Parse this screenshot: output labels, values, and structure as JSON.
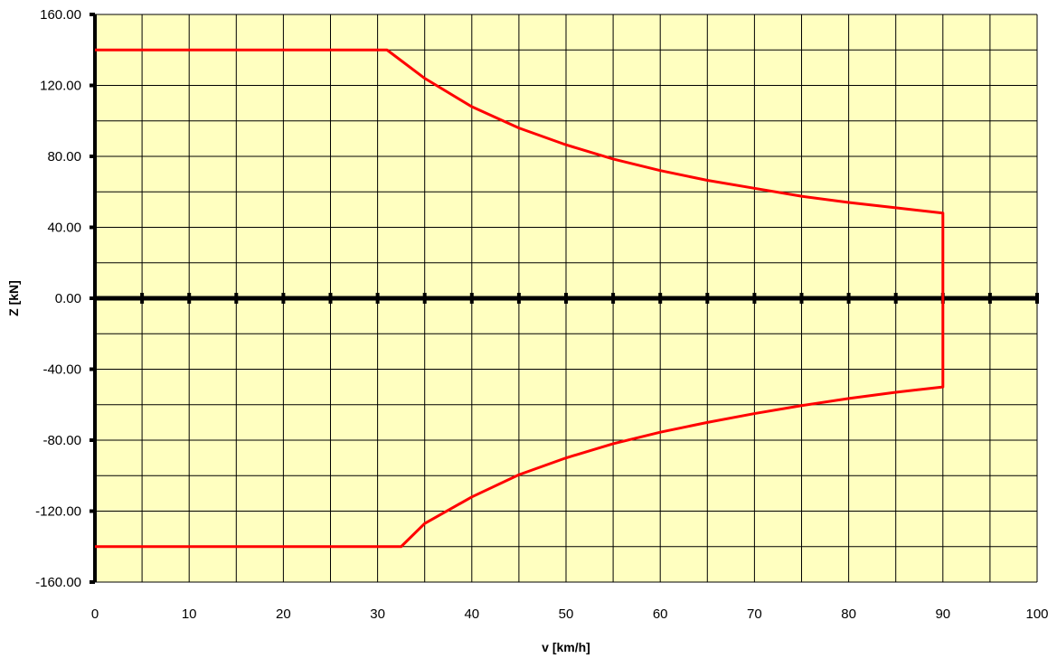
{
  "chart_data": {
    "type": "line",
    "title": "",
    "xlabel": "v [km/h]",
    "ylabel": "Z [kN]",
    "xlim": [
      0,
      100
    ],
    "ylim": [
      -160,
      160
    ],
    "x_ticks": [
      0,
      10,
      20,
      30,
      40,
      50,
      60,
      70,
      80,
      90,
      100
    ],
    "x_tick_labels": [
      "0",
      "10",
      "20",
      "30",
      "40",
      "50",
      "60",
      "70",
      "80",
      "90",
      "100"
    ],
    "y_ticks": [
      -160,
      -120,
      -80,
      -40,
      0,
      40,
      80,
      120,
      160
    ],
    "y_tick_labels": [
      "-160.00",
      "-120.00",
      "-80.00",
      "-40.00",
      "0.00",
      "40.00",
      "80.00",
      "120.00",
      "160.00"
    ],
    "x_grid_step": 5,
    "y_grid_step": 20,
    "grid": true,
    "legend": "none",
    "plot_background": "#ffffc0",
    "grid_color": "#000000",
    "series": [
      {
        "color": "#ff0000",
        "points": [
          [
            0,
            140
          ],
          [
            31,
            140
          ],
          [
            35,
            124
          ],
          [
            40,
            108
          ],
          [
            45,
            96
          ],
          [
            50,
            86.5
          ],
          [
            55,
            78.5
          ],
          [
            60,
            72
          ],
          [
            65,
            66.5
          ],
          [
            70,
            62
          ],
          [
            75,
            57.5
          ],
          [
            80,
            54
          ],
          [
            85,
            51
          ],
          [
            90,
            48
          ],
          [
            90,
            -50
          ],
          [
            85,
            -53
          ],
          [
            80,
            -56.5
          ],
          [
            75,
            -60.5
          ],
          [
            70,
            -65
          ],
          [
            65,
            -70
          ],
          [
            60,
            -75.5
          ],
          [
            55,
            -82
          ],
          [
            50,
            -90
          ],
          [
            45,
            -99.5
          ],
          [
            40,
            -112
          ],
          [
            35,
            -127
          ],
          [
            32.5,
            -140
          ],
          [
            0,
            -140
          ]
        ]
      }
    ]
  }
}
